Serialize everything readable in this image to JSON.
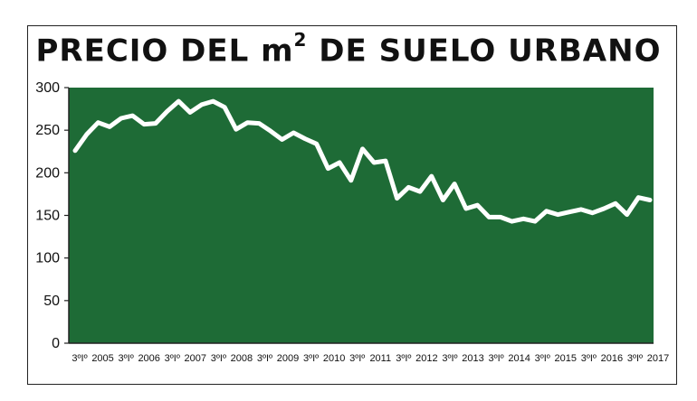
{
  "title": {
    "main": "PRECIO DEL m",
    "sup": "2",
    "rest": " DE SUELO URBANO"
  },
  "colors": {
    "plot_bg": "#1e6b36",
    "line": "#ffffff",
    "axis": "#222222"
  },
  "chart_data": {
    "type": "line",
    "title": "PRECIO DEL m² DE SUELO URBANO",
    "xlabel": "",
    "ylabel": "",
    "ylim": [
      0,
      300
    ],
    "yticks": [
      0,
      50,
      100,
      150,
      200,
      250,
      300
    ],
    "grid": false,
    "x_tick_labels": [
      "3ºIº",
      "2005",
      "3ºIº",
      "2006",
      "3ºIº",
      "2007",
      "3ºIº",
      "2008",
      "3ºIº",
      "2009",
      "3ºIº",
      "2010",
      "3ºIº",
      "2011",
      "3ºIº",
      "2012",
      "3ºIº",
      "2013",
      "3ºIº",
      "2014",
      "3ºIº",
      "2015",
      "3ºIº",
      "2016",
      "3ºIº",
      "2017"
    ],
    "series": [
      {
        "values": [
          226,
          245,
          259,
          254,
          264,
          267,
          257,
          258,
          272,
          284,
          271,
          280,
          284,
          277,
          251,
          259,
          258,
          249,
          239,
          247,
          240,
          234,
          205,
          212,
          191,
          228,
          212,
          214,
          170,
          183,
          178,
          196,
          168,
          187,
          158,
          162,
          148,
          148,
          143,
          146,
          143,
          155,
          151,
          154,
          157,
          153,
          158,
          164,
          151,
          171,
          168
        ]
      }
    ]
  }
}
